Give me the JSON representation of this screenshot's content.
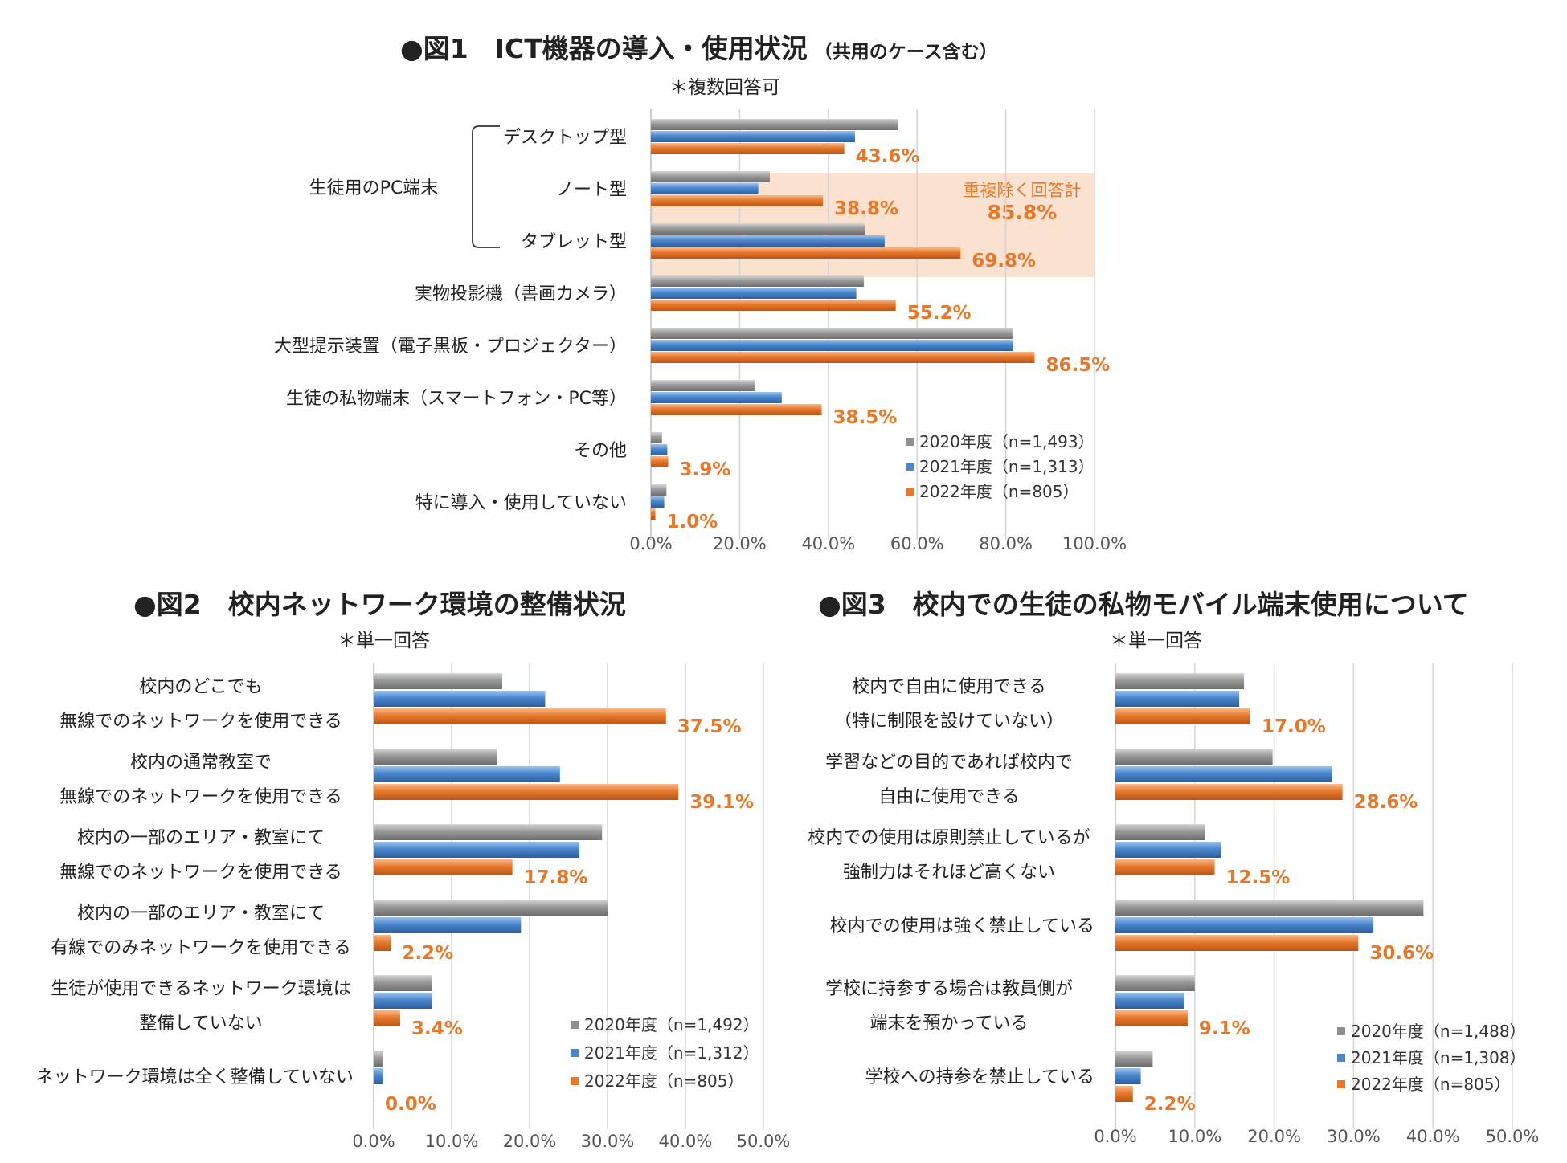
{
  "colors": {
    "y2020": "#8f8f8f",
    "y2021": "#4a86cc",
    "y2022": "#e7782a",
    "highlight": "#fbe1d0",
    "label": "#e7782a",
    "grid": "#d4d4d4",
    "axis": "#777777"
  },
  "chart_data": [
    {
      "id": "fig1",
      "type": "bar",
      "orientation": "horizontal",
      "title": "●図1　ICT機器の導入・使用状況",
      "title_suffix": "（共用のケース含む）",
      "note": "＊複数回答可",
      "group_label": "生徒用のPC端末",
      "highlight_label": "重複除く回答計",
      "highlight_value": "85.8%",
      "categories": [
        "デスクトップ型",
        "ノート型",
        "タブレット型",
        "実物投影機（書画カメラ）",
        "大型提示装置（電子黒板・プロジェクター）",
        "生徒の私物端末（スマートフォン・PC等）",
        "その他",
        "特に導入・使用していない"
      ],
      "series": [
        {
          "name": "2020年度（n=1,493）",
          "values": [
            55.7,
            26.8,
            48.2,
            48.0,
            81.5,
            23.5,
            2.5,
            3.5
          ]
        },
        {
          "name": "2021年度（n=1,313）",
          "values": [
            46.0,
            24.2,
            52.7,
            46.3,
            81.7,
            29.5,
            3.7,
            3.0
          ]
        },
        {
          "name": "2022年度（n=805）",
          "values": [
            43.6,
            38.8,
            69.8,
            55.2,
            86.5,
            38.5,
            3.9,
            1.0
          ]
        }
      ],
      "data_labels": [
        "43.6%",
        "38.8%",
        "69.8%",
        "55.2%",
        "86.5%",
        "38.5%",
        "3.9%",
        "1.0%"
      ],
      "xlim": [
        0,
        100
      ],
      "ticks": [
        "0.0%",
        "20.0%",
        "40.0%",
        "60.0%",
        "80.0%",
        "100.0%"
      ],
      "legend_position": "bottom-right"
    },
    {
      "id": "fig2",
      "type": "bar",
      "orientation": "horizontal",
      "title": "●図2　校内ネットワーク環境の整備状況",
      "note": "＊単一回答",
      "categories": [
        [
          "校内のどこでも",
          "無線でのネットワークを使用できる"
        ],
        [
          "校内の通常教室で",
          "無線でのネットワークを使用できる"
        ],
        [
          "校内の一部のエリア・教室にて",
          "無線でのネットワークを使用できる"
        ],
        [
          "校内の一部のエリア・教室にて",
          "有線でのみネットワークを使用できる"
        ],
        [
          "生徒が使用できるネットワーク環境は",
          "整備していない"
        ],
        [
          "ネットワーク環境は全く整備していない"
        ]
      ],
      "series": [
        {
          "name": "2020年度（n=1,492）",
          "values": [
            16.5,
            15.8,
            29.3,
            30.0,
            7.5,
            1.2
          ]
        },
        {
          "name": "2021年度（n=1,312）",
          "values": [
            22.0,
            23.9,
            26.4,
            18.9,
            7.5,
            1.2
          ]
        },
        {
          "name": "2022年度（n=805）",
          "values": [
            37.5,
            39.1,
            17.8,
            2.2,
            3.4,
            0.0
          ]
        }
      ],
      "data_labels": [
        "37.5%",
        "39.1%",
        "17.8%",
        "2.2%",
        "3.4%",
        "0.0%"
      ],
      "xlim": [
        0,
        50
      ],
      "ticks": [
        "0.0%",
        "10.0%",
        "20.0%",
        "30.0%",
        "40.0%",
        "50.0%"
      ],
      "legend_position": "bottom-right"
    },
    {
      "id": "fig3",
      "type": "bar",
      "orientation": "horizontal",
      "title": "●図3　校内での生徒の私物モバイル端末使用について",
      "note": "＊単一回答",
      "categories": [
        [
          "校内で自由に使用できる",
          "（特に制限を設けていない）"
        ],
        [
          "学習などの目的であれば校内で",
          "自由に使用できる"
        ],
        [
          "校内での使用は原則禁止しているが",
          "強制力はそれほど高くない"
        ],
        [
          "校内での使用は強く禁止している"
        ],
        [
          "学校に持参する場合は教員側が",
          "端末を預かっている"
        ],
        [
          "学校への持参を禁止している"
        ]
      ],
      "series": [
        {
          "name": "2020年度（n=1,488）",
          "values": [
            16.2,
            19.8,
            11.3,
            38.8,
            10.0,
            4.7
          ]
        },
        {
          "name": "2021年度（n=1,308）",
          "values": [
            15.6,
            27.3,
            13.3,
            32.5,
            8.6,
            3.2
          ]
        },
        {
          "name": "2022年度（n=805）",
          "values": [
            17.0,
            28.6,
            12.5,
            30.6,
            9.1,
            2.2
          ]
        }
      ],
      "data_labels": [
        "17.0%",
        "28.6%",
        "12.5%",
        "30.6%",
        "9.1%",
        "2.2%"
      ],
      "xlim": [
        0,
        50
      ],
      "ticks": [
        "0.0%",
        "10.0%",
        "20.0%",
        "30.0%",
        "40.0%",
        "50.0%"
      ],
      "legend_position": "bottom-right"
    }
  ]
}
